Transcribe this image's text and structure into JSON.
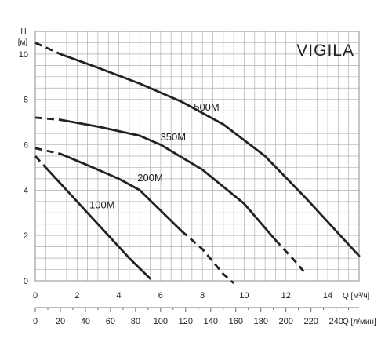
{
  "colors": {
    "grid": "#b0b0b0",
    "curve": "#222222",
    "text": "#222222"
  },
  "chart_data": {
    "type": "line",
    "title": "VIGILA",
    "ylabel": "H",
    "yunit": "[м]",
    "xlabel": "Q [м³/ч]",
    "x2label": "Q [л/мин]",
    "xlim": [
      0,
      15.5
    ],
    "ylim": [
      0,
      11
    ],
    "x_ticks": [
      "0",
      "2",
      "4",
      "6",
      "8",
      "10",
      "12",
      "14"
    ],
    "y_ticks": [
      "0",
      "2",
      "4",
      "6",
      "8",
      "10"
    ],
    "x2_ticks": [
      "0",
      "20",
      "40",
      "60",
      "80",
      "100",
      "120",
      "140",
      "160",
      "180",
      "200",
      "220",
      "240"
    ],
    "grid": true,
    "series": [
      {
        "name": "100M",
        "solid": [
          [
            0.5,
            5.0
          ],
          [
            1.5,
            4.0
          ],
          [
            2.5,
            3.0
          ],
          [
            3.5,
            2.0
          ],
          [
            4.5,
            1.0
          ],
          [
            5.5,
            0.1
          ]
        ],
        "dashed": [
          [
            0.0,
            5.5
          ],
          [
            0.5,
            5.0
          ]
        ],
        "label_at": [
          3.2,
          3.2
        ]
      },
      {
        "name": "200M",
        "solid": [
          [
            1.2,
            5.6
          ],
          [
            2.5,
            5.1
          ],
          [
            4.0,
            4.5
          ],
          [
            5.0,
            4.0
          ],
          [
            6.0,
            3.1
          ],
          [
            7.0,
            2.2
          ]
        ],
        "dashed": [
          [
            0.0,
            5.85
          ],
          [
            1.2,
            5.6
          ],
          [
            7.0,
            2.2
          ],
          [
            8.0,
            1.4
          ],
          [
            9.0,
            0.3
          ],
          [
            9.5,
            -0.1
          ]
        ],
        "label_at": [
          5.5,
          4.4
        ]
      },
      {
        "name": "350M",
        "solid": [
          [
            1.2,
            7.1
          ],
          [
            3.0,
            6.8
          ],
          [
            5.0,
            6.4
          ],
          [
            6.0,
            6.0
          ],
          [
            8.0,
            4.9
          ],
          [
            10.0,
            3.4
          ],
          [
            11.5,
            1.8
          ]
        ],
        "dashed": [
          [
            0.0,
            7.2
          ],
          [
            1.2,
            7.1
          ],
          [
            11.5,
            1.8
          ],
          [
            12.5,
            0.8
          ],
          [
            13.0,
            0.25
          ]
        ],
        "label_at": [
          6.6,
          6.2
        ]
      },
      {
        "name": "500M",
        "solid": [
          [
            1.2,
            10.0
          ],
          [
            3.0,
            9.4
          ],
          [
            5.0,
            8.7
          ],
          [
            7.0,
            7.9
          ],
          [
            9.0,
            6.9
          ],
          [
            11.0,
            5.5
          ],
          [
            13.0,
            3.6
          ],
          [
            14.5,
            2.1
          ],
          [
            15.5,
            1.1
          ]
        ],
        "dashed": [
          [
            0.0,
            10.5
          ],
          [
            1.2,
            10.0
          ]
        ],
        "label_at": [
          8.2,
          7.5
        ]
      }
    ]
  }
}
